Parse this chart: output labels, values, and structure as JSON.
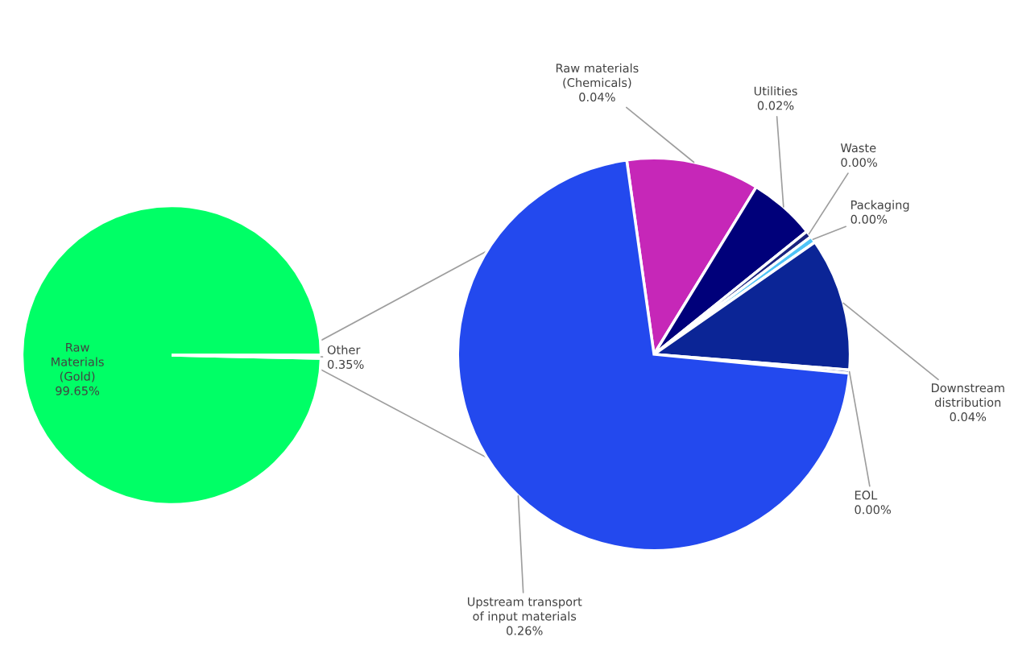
{
  "chart_data": [
    {
      "type": "pie",
      "categories": [
        "Raw\nMaterials\n(Gold)",
        "Other"
      ],
      "values": [
        99.65,
        0.35
      ],
      "colors": [
        "#00ff66",
        "#ffffff"
      ],
      "value_labels": [
        "99.65%",
        "0.35%"
      ]
    },
    {
      "type": "pie",
      "categories": [
        "Raw materials\n(Chemicals)",
        "Utilities",
        "Waste",
        "Packaging",
        "Downstream\ndistribution",
        "EOL",
        "Upstream transport\nof input materials"
      ],
      "values": [
        0.04,
        0.02,
        0.002,
        0.002,
        0.04,
        0.001,
        0.26
      ],
      "colors": [
        "#c627b8",
        "#00007a",
        "#1a237e",
        "#4fc3f7",
        "#0b2596",
        "#3949ab",
        "#2349ee"
      ],
      "value_labels": [
        "0.04%",
        "0.02%",
        "0.00%",
        "0.00%",
        "0.04%",
        "0.00%",
        "0.26%"
      ]
    }
  ]
}
